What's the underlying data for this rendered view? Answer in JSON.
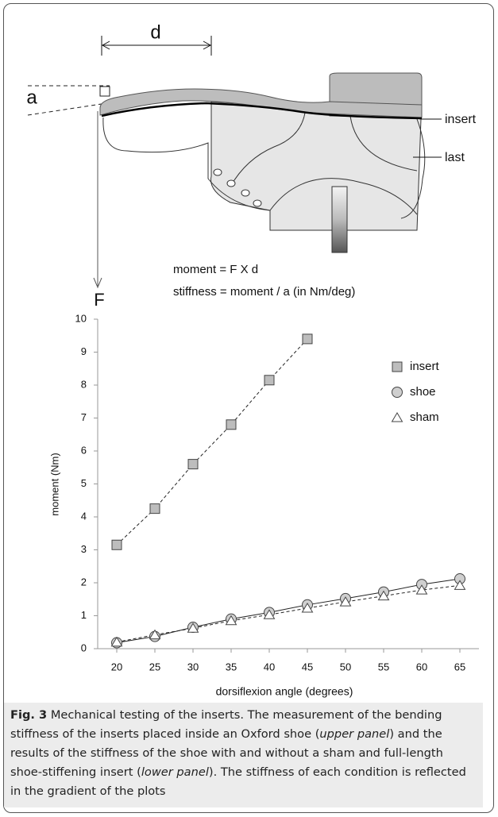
{
  "diagram": {
    "d": "d",
    "a": "a",
    "insert": "insert",
    "last": "last",
    "F": "F",
    "formula_moment": "moment = F X d",
    "formula_stiffness": "stiffness = moment / a (in Nm/deg)"
  },
  "chart_data": {
    "type": "line",
    "x_label": "dorsiflexion angle (degrees)",
    "y_label": "moment (Nm)",
    "x": [
      20,
      25,
      30,
      35,
      40,
      45,
      50,
      55,
      60,
      65
    ],
    "xlim": [
      17.5,
      67.5
    ],
    "xticks": [
      20,
      25,
      30,
      35,
      40,
      45,
      50,
      55,
      60,
      65
    ],
    "ylim": [
      0,
      10
    ],
    "yticks": [
      0,
      1,
      2,
      3,
      4,
      5,
      6,
      7,
      8,
      9,
      10
    ],
    "legend": "upper right",
    "series": [
      {
        "name": "insert",
        "color": "#bdbdbd",
        "marker": "square",
        "line_style": "dashed",
        "values": [
          3.15,
          4.25,
          5.6,
          6.8,
          8.15,
          9.4,
          null,
          null,
          null,
          null
        ]
      },
      {
        "name": "shoe",
        "color": "#cfcfcf",
        "marker": "circle",
        "line_style": "solid",
        "values": [
          0.18,
          0.37,
          0.65,
          0.9,
          1.1,
          1.33,
          1.52,
          1.72,
          1.95,
          2.12
        ]
      },
      {
        "name": "sham",
        "color": "#ffffff",
        "marker": "triangle",
        "line_style": "dashed",
        "values": [
          0.2,
          0.42,
          0.62,
          0.85,
          1.03,
          1.23,
          1.42,
          1.6,
          1.78,
          1.92
        ]
      }
    ]
  },
  "caption": {
    "label": "Fig. 3",
    "parts": [
      {
        "text": " Mechanical testing of the inserts. The measurement of the bending stiffness of the inserts placed inside an Oxford shoe ("
      },
      {
        "text": "upper panel",
        "italic": true
      },
      {
        "text": ") and the results of the stiffness of the shoe with and without a sham and full-length shoe-stiffening insert ("
      },
      {
        "text": "lower panel",
        "italic": true
      },
      {
        "text": "). The stiffness of each condition is reflected in the gradient of the plots"
      }
    ]
  }
}
